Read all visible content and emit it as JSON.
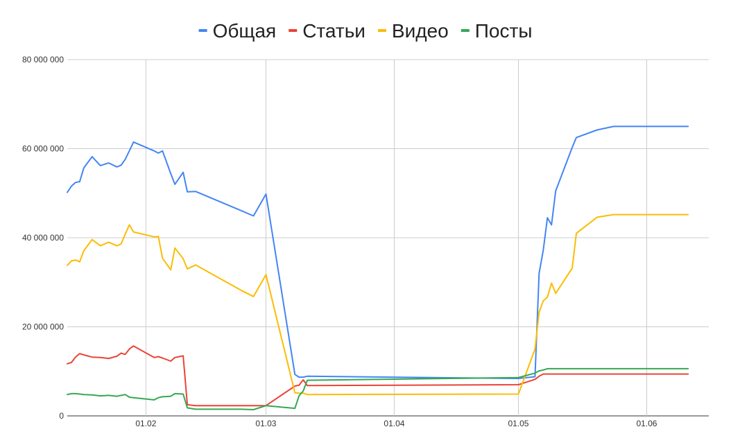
{
  "chart_data": {
    "type": "line",
    "title": "",
    "xlabel": "",
    "ylabel": "",
    "ylim": [
      0,
      80000000
    ],
    "y_ticks": [
      {
        "value": 0,
        "label": "0"
      },
      {
        "value": 20000000,
        "label": "20 000 000"
      },
      {
        "value": 40000000,
        "label": "40 000 000"
      },
      {
        "value": 60000000,
        "label": "60 000 000"
      },
      {
        "value": 80000000,
        "label": "80 000 000"
      }
    ],
    "x_ticks": [
      {
        "date": "2000-02-01",
        "label": "01.02"
      },
      {
        "date": "2000-03-01",
        "label": "01.03"
      },
      {
        "date": "2000-04-01",
        "label": "01.04"
      },
      {
        "date": "2000-05-01",
        "label": "01.05"
      },
      {
        "date": "2000-06-01",
        "label": "01.06"
      }
    ],
    "x_range": [
      "2000-01-13",
      "2000-06-16"
    ],
    "gridlines": true,
    "legend_position": "top",
    "x": [
      "2000-01-13",
      "2000-01-14",
      "2000-01-15",
      "2000-01-16",
      "2000-01-17",
      "2000-01-19",
      "2000-01-21",
      "2000-01-23",
      "2000-01-25",
      "2000-01-26",
      "2000-01-27",
      "2000-01-28",
      "2000-01-29",
      "2000-02-03",
      "2000-02-04",
      "2000-02-05",
      "2000-02-07",
      "2000-02-08",
      "2000-02-10",
      "2000-02-11",
      "2000-02-13",
      "2000-02-24",
      "2000-02-27",
      "2000-03-01",
      "2000-03-08",
      "2000-03-09",
      "2000-03-10",
      "2000-03-11",
      "2000-05-01",
      "2000-05-05",
      "2000-05-06",
      "2000-05-07",
      "2000-05-08",
      "2000-05-09",
      "2000-05-10",
      "2000-05-14",
      "2000-05-15",
      "2000-05-20",
      "2000-05-24",
      "2000-05-26",
      "2000-06-01",
      "2000-06-06",
      "2000-06-08",
      "2000-06-09",
      "2000-06-10",
      "2000-06-11"
    ],
    "series": [
      {
        "name": "Общая",
        "color": "#4285f4",
        "values": [
          50200000,
          51600000,
          52400000,
          52600000,
          55700000,
          58200000,
          56200000,
          56800000,
          55900000,
          56300000,
          57600000,
          59500000,
          61500000,
          59500000,
          59000000,
          59500000,
          54400000,
          52000000,
          54700000,
          50300000,
          50400000,
          46100000,
          44900000,
          49800000,
          9300000,
          8700000,
          8700000,
          8900000,
          8400000,
          8800000,
          32000000,
          37200000,
          44500000,
          42900000,
          50500000,
          60300000,
          62500000,
          64200000,
          65000000,
          65000000,
          65000000,
          65000000,
          65000000,
          65000000,
          65000000,
          65000000
        ]
      },
      {
        "name": "Статьи",
        "color": "#ea4335",
        "values": [
          11700000,
          12000000,
          13200000,
          14000000,
          13700000,
          13200000,
          13100000,
          12900000,
          13400000,
          14100000,
          13800000,
          15000000,
          15700000,
          13100000,
          13300000,
          13000000,
          12300000,
          13100000,
          13500000,
          2500000,
          2300000,
          2300000,
          2300000,
          2300000,
          6700000,
          6900000,
          8100000,
          6800000,
          7000000,
          8200000,
          8900000,
          9400000,
          9400000,
          9400000,
          9400000,
          9400000,
          9400000,
          9400000,
          9400000,
          9400000,
          9400000,
          9400000,
          9400000,
          9400000,
          9400000,
          9400000
        ]
      },
      {
        "name": "Видео",
        "color": "#fbbc04",
        "values": [
          33800000,
          34800000,
          35000000,
          34600000,
          37100000,
          39600000,
          38200000,
          39000000,
          38200000,
          38600000,
          40800000,
          42900000,
          41300000,
          40200000,
          40300000,
          35400000,
          32800000,
          37700000,
          35300000,
          33000000,
          33900000,
          28200000,
          26800000,
          31700000,
          5200000,
          5100000,
          5100000,
          4800000,
          4900000,
          15000000,
          23300000,
          25800000,
          26700000,
          29800000,
          27500000,
          33200000,
          41000000,
          44600000,
          45200000,
          45200000,
          45200000,
          45200000,
          45200000,
          45200000,
          45200000,
          45200000
        ]
      },
      {
        "name": "Посты",
        "color": "#34a853",
        "values": [
          4800000,
          5000000,
          5000000,
          4900000,
          4800000,
          4700000,
          4500000,
          4600000,
          4400000,
          4600000,
          4800000,
          4200000,
          4100000,
          3600000,
          4100000,
          4300000,
          4400000,
          5000000,
          4900000,
          1800000,
          1500000,
          1500000,
          1400000,
          2300000,
          1700000,
          4500000,
          5600000,
          8000000,
          8600000,
          9600000,
          10100000,
          10300000,
          10600000,
          10600000,
          10600000,
          10600000,
          10600000,
          10600000,
          10600000,
          10600000,
          10600000,
          10600000,
          10600000,
          10600000,
          10600000,
          10600000
        ]
      }
    ]
  }
}
